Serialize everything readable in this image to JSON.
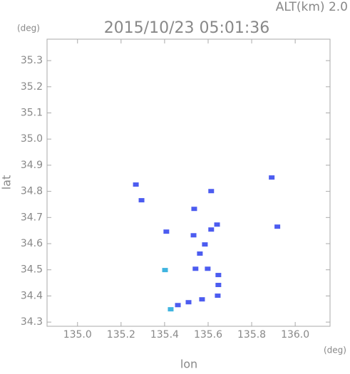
{
  "chart_data": {
    "type": "scatter",
    "title": "2015/10/23 05:01:36",
    "subtitle": "ALT(km) 2.0",
    "x_label": "lon",
    "y_label": "lat",
    "x_unit": "(deg)",
    "y_unit": "(deg)",
    "xlim": [
      134.86,
      136.16
    ],
    "ylim": [
      34.284,
      35.382
    ],
    "xticks": [
      {
        "value": 135,
        "label": "135.0"
      },
      135.2,
      135.4,
      135.6,
      135.8,
      {
        "value": 136,
        "label": "136.0"
      }
    ],
    "yticks": [
      34.3,
      34.4,
      34.5,
      34.6,
      34.7,
      34.8,
      34.9,
      {
        "value": 35,
        "label": "35.0"
      },
      35.1,
      35.2,
      35.3
    ],
    "series": [
      {
        "color": "#4c5cf0",
        "x": [
          135.268,
          135.294,
          135.408,
          135.533,
          135.562,
          135.542,
          135.598,
          135.641,
          135.647,
          135.647,
          135.644,
          135.614,
          135.572,
          135.51,
          135.461,
          135.918,
          135.892,
          135.614,
          135.536,
          135.585
        ],
        "values": [
          34.826,
          34.766,
          34.646,
          34.632,
          34.562,
          34.504,
          34.504,
          34.673,
          34.48,
          34.442,
          34.401,
          34.654,
          34.387,
          34.376,
          34.365,
          34.665,
          34.853,
          34.801,
          34.733,
          34.597
        ]
      },
      {
        "color": "#3fb4e0",
        "x": [
          135.402,
          135.428
        ],
        "values": [
          34.499,
          34.349
        ]
      }
    ]
  }
}
